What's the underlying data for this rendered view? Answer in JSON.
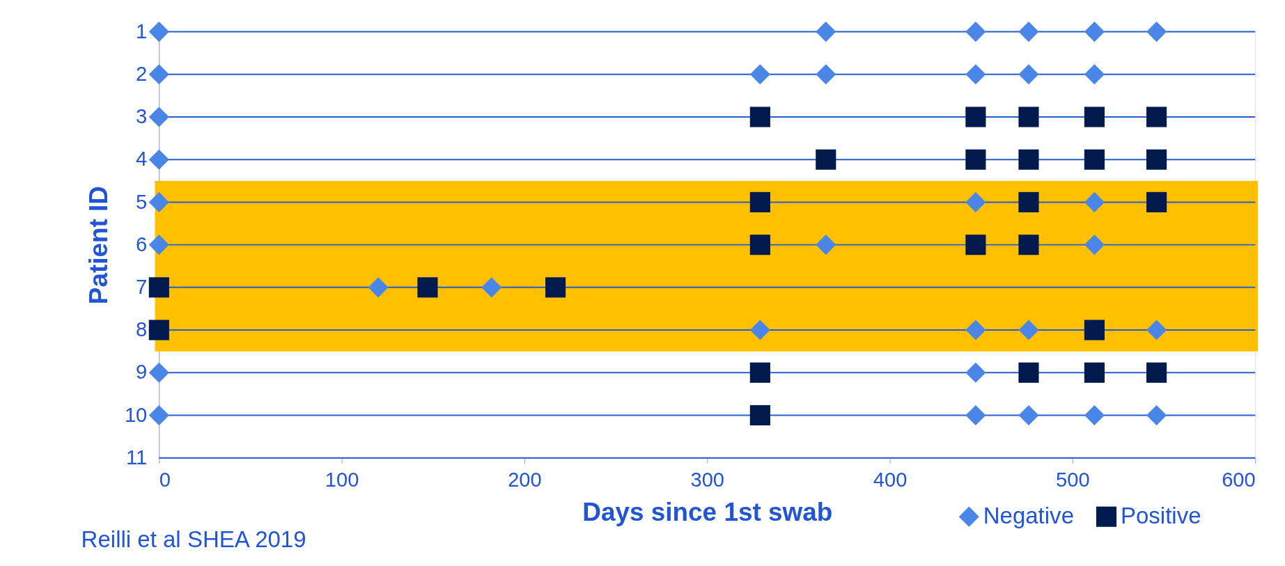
{
  "chart_data": {
    "type": "scatter",
    "xlabel": "Days since 1st swab",
    "ylabel": "Patient ID",
    "xlim": [
      0,
      600
    ],
    "xticks": [
      0,
      100,
      200,
      300,
      400,
      500,
      600
    ],
    "ylim": [
      11,
      1
    ],
    "yticks": [
      1,
      2,
      3,
      4,
      5,
      6,
      7,
      8,
      9,
      10,
      11
    ],
    "grid": "y",
    "legend": "bottom right",
    "bands": [
      {
        "axis": "y",
        "from": 4.5,
        "to": 8.5,
        "color": "#ffc000"
      }
    ],
    "series": [
      {
        "name": "Negative",
        "color": "#4a86e8",
        "marker": "diamond",
        "x": [
          0,
          365,
          447,
          476,
          512,
          546,
          0,
          329,
          365,
          447,
          476,
          512,
          0,
          0,
          0,
          447,
          512,
          0,
          365,
          512,
          120,
          182,
          329,
          447,
          476,
          546,
          0,
          447,
          0,
          447,
          476,
          512,
          546
        ],
        "values": [
          1,
          1,
          1,
          1,
          1,
          1,
          2,
          2,
          2,
          2,
          2,
          2,
          3,
          4,
          5,
          5,
          5,
          6,
          6,
          6,
          7,
          7,
          8,
          8,
          8,
          8,
          9,
          9,
          10,
          10,
          10,
          10,
          10
        ]
      },
      {
        "name": "Positive",
        "color": "#001a4d",
        "marker": "square",
        "x": [
          329,
          447,
          476,
          512,
          546,
          365,
          447,
          476,
          512,
          546,
          329,
          476,
          546,
          329,
          447,
          476,
          0,
          147,
          217,
          0,
          512,
          329,
          476,
          512,
          546,
          329
        ],
        "values": [
          3,
          3,
          3,
          3,
          3,
          4,
          4,
          4,
          4,
          4,
          5,
          5,
          5,
          6,
          6,
          6,
          7,
          7,
          7,
          8,
          8,
          9,
          9,
          9,
          9,
          10
        ]
      }
    ],
    "annotations": [
      "Reilli et al SHEA 2019"
    ]
  }
}
